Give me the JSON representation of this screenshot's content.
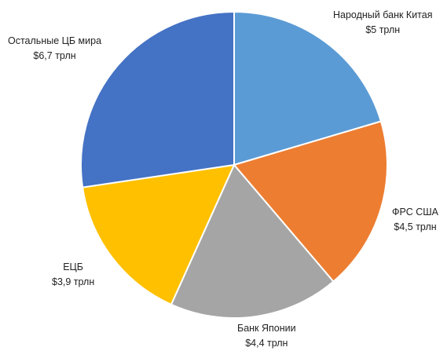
{
  "chart_data": {
    "type": "pie",
    "title": "",
    "start_angle_deg": 0,
    "direction": "clockwise",
    "slices": [
      {
        "name": "Народный банк Китая",
        "value_label": "$5 трлн",
        "value": 5.0,
        "color": "#5b9bd5"
      },
      {
        "name": "ФРС США",
        "value_label": "$4,5 трлн",
        "value": 4.5,
        "color": "#ed7d31"
      },
      {
        "name": "Банк Японии",
        "value_label": "$4,4 трлн",
        "value": 4.4,
        "color": "#a5a5a5"
      },
      {
        "name": "ЕЦБ",
        "value_label": "$3,9 трлн",
        "value": 3.9,
        "color": "#ffc000"
      },
      {
        "name": "Остальные ЦБ мира",
        "value_label": "$6,7 трлн",
        "value": 6.7,
        "color": "#4472c4"
      }
    ],
    "unit": "трлн"
  }
}
